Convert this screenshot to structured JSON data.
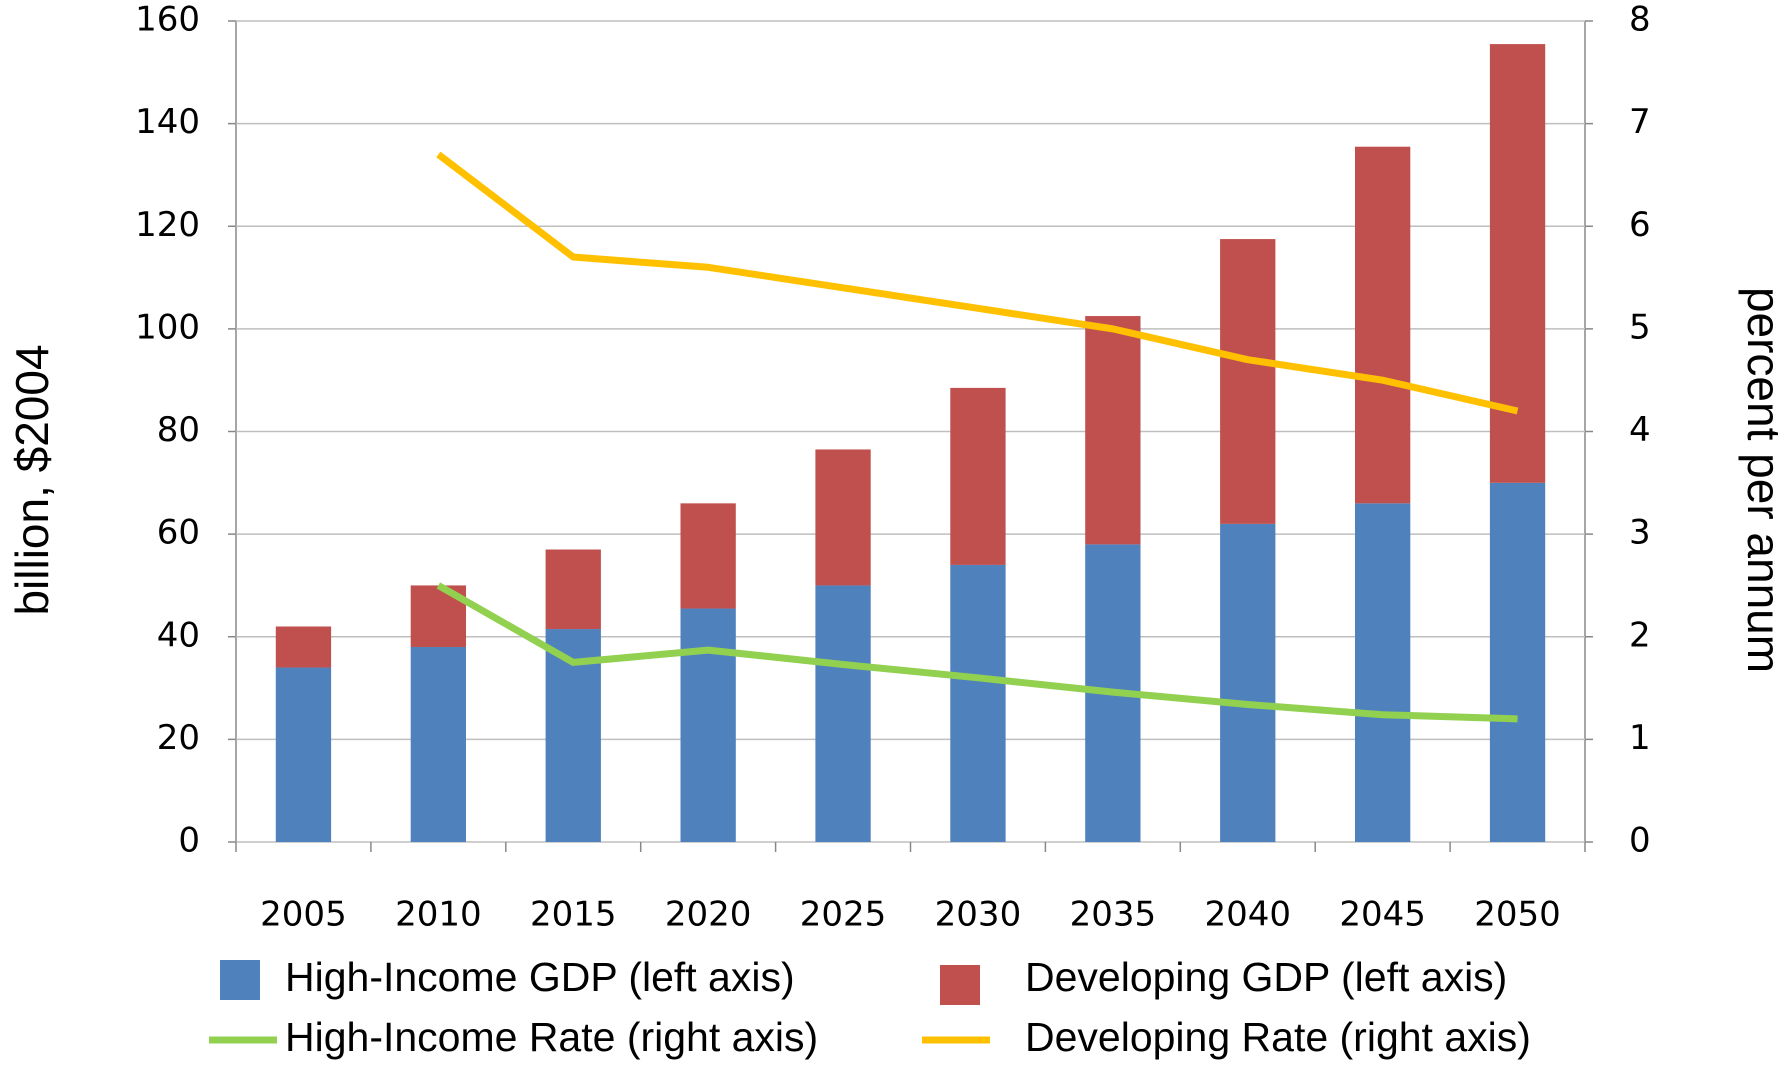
{
  "chart_data": {
    "type": "bar",
    "stacked": true,
    "y_label": "billion, $2004",
    "y2_label": "percent per annum",
    "categories": [
      "2005",
      "2010",
      "2015",
      "2020",
      "2025",
      "2030",
      "2035",
      "2040",
      "2045",
      "2050"
    ],
    "series": [
      {
        "name": "High-Income GDP (left axis)",
        "type": "bar",
        "color": "#4f81bd",
        "values": [
          34,
          38,
          41.5,
          45.5,
          50,
          54,
          58,
          62,
          66,
          70
        ]
      },
      {
        "name": "Developing GDP (left axis)",
        "type": "bar",
        "color": "#c0504d",
        "values": [
          8,
          12,
          15.5,
          20.5,
          26.5,
          34.5,
          44.5,
          55.5,
          69.5,
          85.5
        ]
      },
      {
        "name": "High-Income Rate (right axis)",
        "type": "line",
        "axis": "y2",
        "color": "#92d050",
        "values": [
          null,
          2.5,
          1.75,
          1.87,
          1.73,
          1.6,
          1.46,
          1.34,
          1.24,
          1.2
        ]
      },
      {
        "name": "Developing Rate (right axis)",
        "type": "line",
        "axis": "y2",
        "color": "#ffc000",
        "values": [
          null,
          6.7,
          5.7,
          5.6,
          5.4,
          5.2,
          5.0,
          4.7,
          4.5,
          4.2
        ]
      }
    ],
    "ylim": [
      0,
      160
    ],
    "yticks": [
      0,
      20,
      40,
      60,
      80,
      100,
      120,
      140,
      160
    ],
    "y2lim": [
      0,
      8
    ],
    "y2ticks": [
      0,
      1,
      2,
      3,
      4,
      5,
      6,
      7,
      8
    ],
    "grid": true
  }
}
